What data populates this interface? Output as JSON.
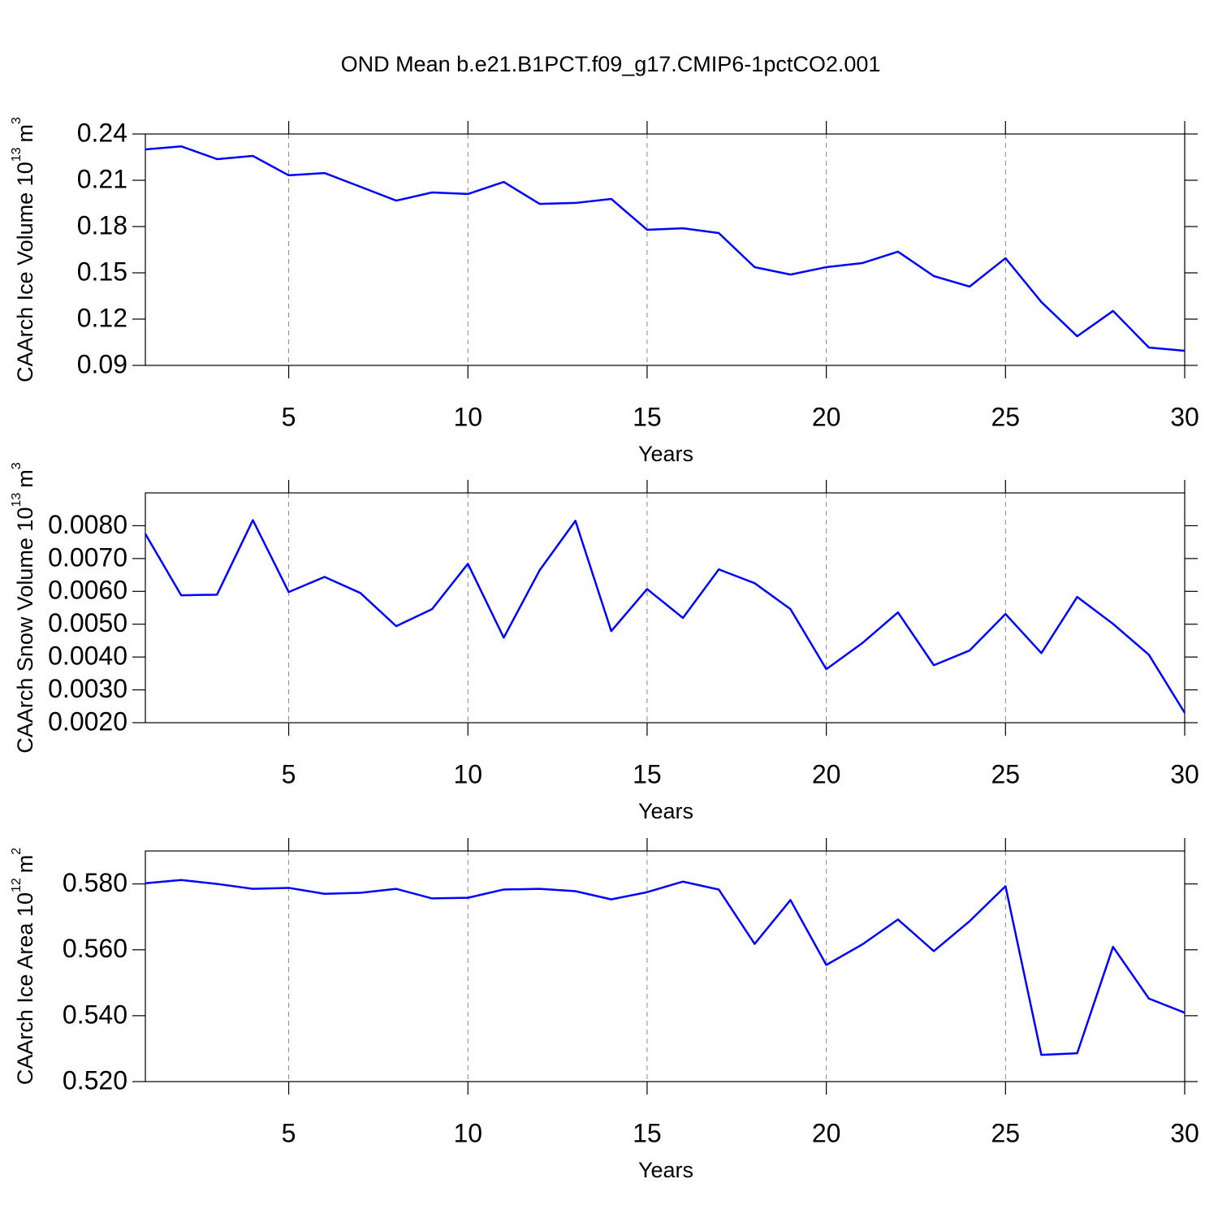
{
  "title": "OND Mean b.e21.B1PCT.f09_g17.CMIP6-1pctCO2.001",
  "chart_data": [
    {
      "type": "line",
      "xlabel": "Years",
      "ylabel": {
        "text": "CAArch Ice Volume 10",
        "exp": "13",
        "unit": "m",
        "unit_exp": "3"
      },
      "x": [
        1,
        2,
        3,
        4,
        5,
        6,
        7,
        8,
        9,
        10,
        11,
        12,
        13,
        14,
        15,
        16,
        17,
        18,
        19,
        20,
        21,
        22,
        23,
        24,
        25,
        26,
        27,
        28,
        29,
        30
      ],
      "series": [
        {
          "color": "#0000ff",
          "values": [
            0.23,
            0.232,
            0.2237,
            0.2258,
            0.2132,
            0.2147,
            0.2058,
            0.1968,
            0.2021,
            0.2011,
            0.2089,
            0.1947,
            0.1953,
            0.1979,
            0.1779,
            0.1789,
            0.1758,
            0.1537,
            0.1489,
            0.1537,
            0.1563,
            0.1637,
            0.1479,
            0.1411,
            0.1595,
            0.1311,
            0.1089,
            0.1253,
            0.1016,
            0.0995
          ]
        }
      ],
      "xlim": [
        1,
        30
      ],
      "xticks": [
        5,
        10,
        15,
        20,
        25,
        30
      ],
      "ylim": [
        0.09,
        0.24
      ],
      "yticks": [
        0.09,
        0.12,
        0.15,
        0.18,
        0.21,
        0.24
      ],
      "xgrid": true
    },
    {
      "type": "line",
      "xlabel": "Years",
      "ylabel": {
        "text": "CAArch Snow Volume 10",
        "exp": "13",
        "unit": "m",
        "unit_exp": "3"
      },
      "x": [
        1,
        2,
        3,
        4,
        5,
        6,
        7,
        8,
        9,
        10,
        11,
        12,
        13,
        14,
        15,
        16,
        17,
        18,
        19,
        20,
        21,
        22,
        23,
        24,
        25,
        26,
        27,
        28,
        29,
        30
      ],
      "series": [
        {
          "color": "#0000ff",
          "values": [
            0.00775,
            0.00588,
            0.0059,
            0.00817,
            0.00598,
            0.00644,
            0.00595,
            0.00494,
            0.00546,
            0.00684,
            0.00459,
            0.00664,
            0.00815,
            0.00479,
            0.00607,
            0.00519,
            0.00667,
            0.00625,
            0.00546,
            0.00363,
            0.00442,
            0.00536,
            0.00375,
            0.0042,
            0.00531,
            0.00412,
            0.00583,
            0.00501,
            0.00407,
            0.0023
          ]
        }
      ],
      "xlim": [
        1,
        30
      ],
      "xticks": [
        5,
        10,
        15,
        20,
        25,
        30
      ],
      "ylim": [
        0.002,
        0.009
      ],
      "yticks": [
        {
          "value": 0.002,
          "label": "0.0020"
        },
        {
          "value": 0.003,
          "label": "0.0030"
        },
        {
          "value": 0.004,
          "label": "0.0040"
        },
        {
          "value": 0.005,
          "label": "0.0050"
        },
        {
          "value": 0.006,
          "label": "0.0060"
        },
        {
          "value": 0.007,
          "label": "0.0070"
        },
        {
          "value": 0.008,
          "label": "0.0080"
        }
      ],
      "xgrid": true
    },
    {
      "type": "line",
      "xlabel": "Years",
      "ylabel": {
        "text": "CAArch Ice Area 10",
        "exp": "12",
        "unit": "m",
        "unit_exp": "2"
      },
      "x": [
        1,
        2,
        3,
        4,
        5,
        6,
        7,
        8,
        9,
        10,
        11,
        12,
        13,
        14,
        15,
        16,
        17,
        18,
        19,
        20,
        21,
        22,
        23,
        24,
        25,
        26,
        27,
        28,
        29,
        30
      ],
      "series": [
        {
          "color": "#0000ff",
          "values": [
            0.5802,
            0.5812,
            0.58,
            0.5785,
            0.5788,
            0.577,
            0.5773,
            0.5785,
            0.5756,
            0.5758,
            0.5783,
            0.5785,
            0.5778,
            0.5753,
            0.5775,
            0.5807,
            0.5783,
            0.5618,
            0.5751,
            0.5554,
            0.5616,
            0.5692,
            0.5596,
            0.5687,
            0.5793,
            0.5281,
            0.5286,
            0.5609,
            0.5452,
            0.5409
          ]
        }
      ],
      "xlim": [
        1,
        30
      ],
      "xticks": [
        5,
        10,
        15,
        20,
        25,
        30
      ],
      "ylim": [
        0.52,
        0.59
      ],
      "yticks": [
        {
          "value": 0.52,
          "label": "0.520"
        },
        {
          "value": 0.54,
          "label": "0.540"
        },
        {
          "value": 0.56,
          "label": "0.560"
        },
        {
          "value": 0.58,
          "label": "0.580"
        }
      ],
      "xgrid": true
    }
  ]
}
